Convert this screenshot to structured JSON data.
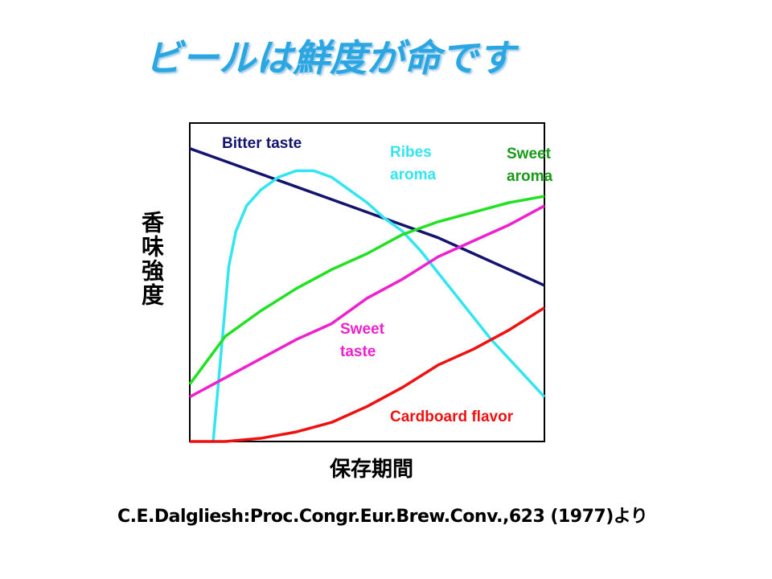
{
  "chart_data": {
    "type": "line",
    "title": "ビールは鮮度が命です",
    "x_label": "保存期間",
    "y_label": "香味強度",
    "source": "C.E.Dalgliesh:Proc.Congr.Eur.Brew.Conv.,623 (1977)より",
    "xlim": [
      0,
      100
    ],
    "ylim": [
      0,
      100
    ],
    "series": [
      {
        "name": "Bitter taste",
        "color": "#14146e",
        "x": [
          0,
          10,
          20,
          30,
          40,
          50,
          60,
          70,
          80,
          90,
          100
        ],
        "values": [
          92,
          88,
          84,
          80,
          76,
          72,
          68,
          64,
          59,
          54,
          49
        ]
      },
      {
        "name": "Ribes aroma",
        "color": "#33e5f0",
        "x": [
          6.6,
          9,
          11,
          13,
          16,
          20,
          25,
          30,
          35,
          40,
          45,
          50,
          55,
          60,
          65,
          70,
          75,
          80,
          85,
          90,
          95,
          100
        ],
        "values": [
          0,
          30,
          55,
          66,
          74,
          79,
          83,
          85,
          85,
          83,
          79,
          75,
          70,
          66,
          60,
          53,
          46,
          39,
          32,
          26,
          20,
          14
        ]
      },
      {
        "name": "Sweet aroma",
        "color": "#22e022",
        "x": [
          0,
          10,
          20,
          30,
          40,
          50,
          60,
          70,
          80,
          90,
          100
        ],
        "values": [
          18,
          33,
          41,
          48,
          54,
          59,
          65,
          69,
          72,
          75,
          77
        ]
      },
      {
        "name": "Sweet taste",
        "color": "#ee22cc",
        "x": [
          0,
          10,
          20,
          30,
          40,
          50,
          60,
          70,
          80,
          90,
          100
        ],
        "values": [
          14,
          20,
          26,
          32,
          37,
          45,
          51,
          58,
          63,
          68,
          74
        ]
      },
      {
        "name": "Cardboard flavor",
        "color": "#ee1111",
        "x": [
          0,
          10,
          20,
          30,
          40,
          50,
          60,
          70,
          80,
          90,
          100
        ],
        "values": [
          0,
          0,
          1,
          3,
          6,
          11,
          17,
          24,
          29,
          35,
          42
        ]
      }
    ]
  }
}
